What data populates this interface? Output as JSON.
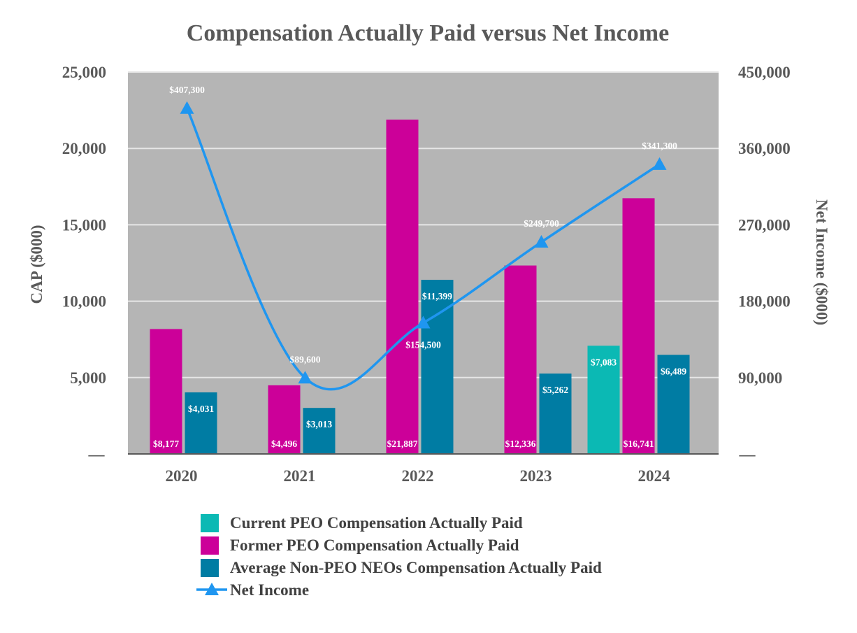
{
  "chart_data": {
    "type": "bar",
    "title": "Compensation Actually Paid versus Net Income",
    "categories": [
      "2020",
      "2021",
      "2022",
      "2023",
      "2024"
    ],
    "ylabel": "CAP ($000)",
    "ylabel_right": "Net Income ($000)",
    "ylim": [
      0,
      25000
    ],
    "ylim_right": [
      0,
      450000
    ],
    "y_ticks": [
      "—",
      "5,000",
      "10,000",
      "15,000",
      "20,000",
      "25,000"
    ],
    "y_ticks_right": [
      "—",
      "90,000",
      "180,000",
      "270,000",
      "360,000",
      "450,000"
    ],
    "grid": true,
    "legend_position": "bottom",
    "series": [
      {
        "name": "Current PEO Compensation Actually Paid",
        "color": "#0bb9b4",
        "values": [
          null,
          null,
          null,
          null,
          7083
        ],
        "labels": [
          "",
          "",
          "",
          "",
          "$7,083"
        ]
      },
      {
        "name": "Former PEO Compensation Actually Paid",
        "color": "#cc0099",
        "values": [
          8177,
          4496,
          21887,
          12336,
          16741
        ],
        "labels": [
          "$8,177",
          "$4,496",
          "$21,887",
          "$12,336",
          "$16,741"
        ]
      },
      {
        "name": "Average Non-PEO NEOs Compensation Actually Paid",
        "color": "#007ca3",
        "values": [
          4031,
          3013,
          11399,
          5262,
          6489
        ],
        "labels": [
          "$4,031",
          "$3,013",
          "$11,399",
          "$5,262",
          "$6,489"
        ]
      },
      {
        "name": "Net Income",
        "type": "line",
        "axis": "right",
        "color": "#1f96f0",
        "values": [
          407300,
          89600,
          154500,
          249700,
          341300
        ],
        "labels": [
          "$407,300",
          "$89,600",
          "$154,500",
          "$249,700",
          "$341,300"
        ]
      }
    ]
  }
}
